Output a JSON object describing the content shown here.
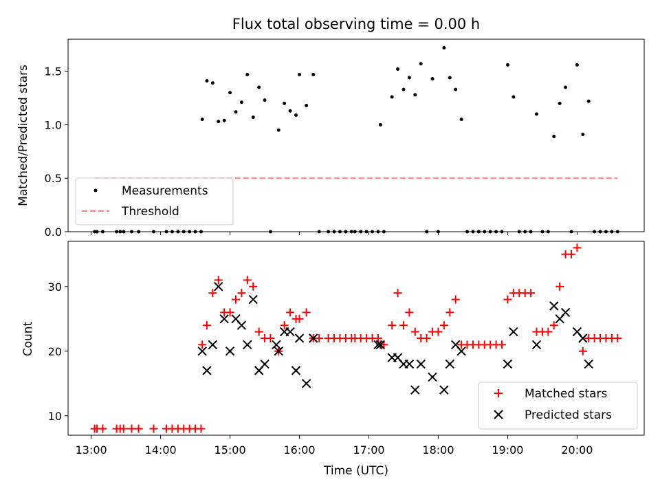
{
  "chart_data": [
    {
      "type": "scatter",
      "title": "Flux total observing time = 0.00 h",
      "xlabel": "",
      "ylabel": "Matched/Predicted stars",
      "xlim": [
        "12:40",
        "20:58"
      ],
      "ylim": [
        0,
        1.8
      ],
      "yticks": [
        "0.0",
        "0.5",
        "1.0",
        "1.5"
      ],
      "legend_position": "lower-left",
      "series": [
        {
          "name": "Measurements",
          "color": "#000000",
          "x": [
            "13:03",
            "13:05",
            "13:10",
            "13:22",
            "13:25",
            "13:28",
            "13:35",
            "13:41",
            "13:54",
            "14:05",
            "14:10",
            "14:15",
            "14:20",
            "14:25",
            "14:30",
            "14:35",
            "14:36",
            "14:40",
            "14:45",
            "14:50",
            "14:55",
            "15:00",
            "15:05",
            "15:10",
            "15:15",
            "15:20",
            "15:25",
            "15:30",
            "15:35",
            "15:42",
            "15:47",
            "15:52",
            "15:57",
            "16:00",
            "16:06",
            "16:12",
            "16:17",
            "16:25",
            "16:30",
            "16:35",
            "16:40",
            "16:45",
            "16:48",
            "16:53",
            "16:58",
            "17:03",
            "17:08",
            "17:10",
            "17:13",
            "17:20",
            "17:25",
            "17:30",
            "17:35",
            "17:40",
            "17:45",
            "17:50",
            "17:55",
            "18:00",
            "18:05",
            "18:10",
            "18:15",
            "18:20",
            "18:25",
            "18:30",
            "18:35",
            "18:40",
            "18:45",
            "18:50",
            "18:55",
            "19:00",
            "19:05",
            "19:10",
            "19:15",
            "19:20",
            "19:25",
            "19:30",
            "19:35",
            "19:40",
            "19:45",
            "19:50",
            "19:55",
            "20:00",
            "20:05",
            "20:10",
            "20:15",
            "20:20",
            "20:25",
            "20:30",
            "20:35"
          ],
          "y": [
            0,
            0,
            0,
            0,
            0,
            0,
            0,
            0,
            0,
            0,
            0,
            0,
            0,
            0,
            0,
            0,
            1.05,
            1.41,
            1.39,
            1.03,
            1.04,
            1.3,
            1.12,
            1.21,
            1.47,
            1.07,
            1.35,
            1.23,
            0,
            0.95,
            1.2,
            1.13,
            1.09,
            1.47,
            1.18,
            1.47,
            0,
            0,
            0,
            0,
            0,
            0,
            0,
            0,
            0,
            0,
            0,
            1.0,
            0,
            1.26,
            1.52,
            1.33,
            1.44,
            1.28,
            1.57,
            0,
            1.43,
            0,
            1.72,
            1.44,
            1.33,
            1.05,
            0,
            0,
            0,
            0,
            0,
            0,
            0,
            1.56,
            1.26,
            0,
            0,
            0,
            1.1,
            0,
            0,
            0.89,
            1.2,
            1.35,
            0,
            1.56,
            0.91,
            1.22,
            0,
            0,
            0,
            0,
            0
          ]
        },
        {
          "name": "Threshold",
          "type": "line",
          "style": "dashed",
          "color": "#ff7f7f",
          "x": [
            "13:03",
            "20:35"
          ],
          "y": [
            0.5,
            0.5
          ]
        }
      ]
    },
    {
      "type": "scatter",
      "title": "",
      "xlabel": "Time (UTC)",
      "ylabel": "Count",
      "xlim": [
        "12:40",
        "20:58"
      ],
      "ylim": [
        7,
        37
      ],
      "yticks": [
        "10",
        "20",
        "30"
      ],
      "xticks": [
        "13:00",
        "14:00",
        "15:00",
        "16:00",
        "17:00",
        "18:00",
        "19:00",
        "20:00"
      ],
      "legend_position": "lower-right",
      "series": [
        {
          "name": "Matched stars",
          "marker": "plus",
          "color": "#ff0000",
          "x": [
            "13:03",
            "13:05",
            "13:10",
            "13:22",
            "13:25",
            "13:28",
            "13:35",
            "13:41",
            "13:54",
            "14:05",
            "14:10",
            "14:15",
            "14:20",
            "14:25",
            "14:30",
            "14:35",
            "14:36",
            "14:40",
            "14:45",
            "14:50",
            "14:55",
            "15:00",
            "15:05",
            "15:10",
            "15:15",
            "15:20",
            "15:25",
            "15:30",
            "15:35",
            "15:42",
            "15:47",
            "15:52",
            "15:57",
            "16:00",
            "16:06",
            "16:12",
            "16:17",
            "16:25",
            "16:30",
            "16:35",
            "16:40",
            "16:45",
            "16:48",
            "16:53",
            "16:58",
            "17:03",
            "17:08",
            "17:10",
            "17:13",
            "17:20",
            "17:25",
            "17:30",
            "17:35",
            "17:40",
            "17:45",
            "17:50",
            "17:55",
            "18:00",
            "18:05",
            "18:10",
            "18:15",
            "18:20",
            "18:25",
            "18:30",
            "18:35",
            "18:40",
            "18:45",
            "18:50",
            "18:55",
            "19:00",
            "19:05",
            "19:10",
            "19:15",
            "19:20",
            "19:25",
            "19:30",
            "19:35",
            "19:40",
            "19:45",
            "19:50",
            "19:55",
            "20:00",
            "20:05",
            "20:10",
            "20:15",
            "20:20",
            "20:25",
            "20:30",
            "20:35"
          ],
          "y": [
            8,
            8,
            8,
            8,
            8,
            8,
            8,
            8,
            8,
            8,
            8,
            8,
            8,
            8,
            8,
            8,
            21,
            24,
            29,
            31,
            26,
            26,
            28,
            29,
            31,
            30,
            23,
            22,
            22,
            20,
            24,
            26,
            25,
            25,
            26,
            22,
            22,
            22,
            22,
            22,
            22,
            22,
            22,
            22,
            22,
            22,
            22,
            21,
            21,
            24,
            29,
            24,
            26,
            23,
            22,
            22,
            23,
            23,
            24,
            26,
            28,
            21,
            21,
            21,
            21,
            21,
            21,
            21,
            21,
            28,
            29,
            29,
            29,
            29,
            23,
            23,
            23,
            24,
            30,
            35,
            35,
            36,
            20,
            22,
            22,
            22,
            22,
            22,
            22
          ]
        },
        {
          "name": "Predicted stars",
          "marker": "x",
          "color": "#000000",
          "x": [
            "14:36",
            "14:40",
            "14:45",
            "14:50",
            "14:55",
            "15:00",
            "15:05",
            "15:10",
            "15:15",
            "15:20",
            "15:25",
            "15:30",
            "15:40",
            "15:42",
            "15:47",
            "15:52",
            "15:57",
            "16:00",
            "16:06",
            "16:12",
            "17:08",
            "17:10",
            "17:20",
            "17:25",
            "17:30",
            "17:35",
            "17:40",
            "17:45",
            "17:55",
            "18:05",
            "18:10",
            "18:15",
            "18:20",
            "19:00",
            "19:05",
            "19:25",
            "19:40",
            "19:45",
            "19:50",
            "20:00",
            "20:05",
            "20:10"
          ],
          "y": [
            20,
            17,
            21,
            30,
            25,
            20,
            25,
            24,
            21,
            28,
            17,
            18,
            21,
            20,
            23,
            23,
            17,
            22,
            15,
            22,
            21,
            21,
            19,
            19,
            18,
            18,
            14,
            18,
            16,
            14,
            18,
            21,
            20,
            18,
            23,
            21,
            27,
            25,
            26,
            23,
            22,
            18
          ]
        }
      ]
    }
  ]
}
